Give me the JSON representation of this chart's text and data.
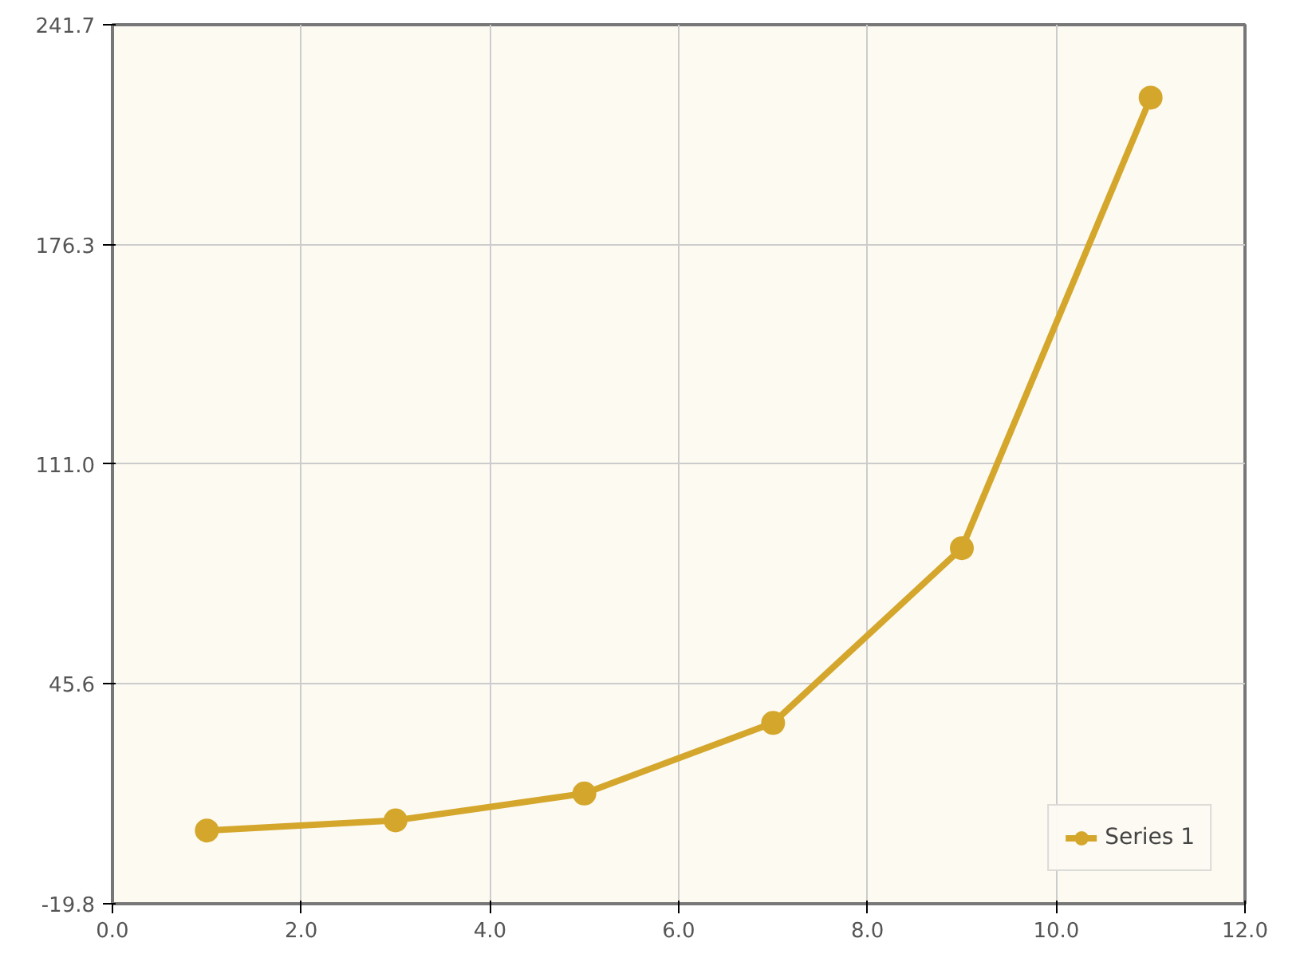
{
  "chart_data": {
    "type": "line",
    "x": [
      1,
      3,
      5,
      7,
      9,
      11
    ],
    "series": [
      {
        "name": "Series 1",
        "color": "#d4a72c",
        "values": [
          2,
          5,
          13,
          34,
          86,
          220
        ]
      }
    ],
    "xlim": [
      0,
      12
    ],
    "xticks": [
      {
        "value": 0,
        "label": "0.0"
      },
      {
        "value": 2,
        "label": "2.0"
      },
      {
        "value": 4,
        "label": "4.0"
      },
      {
        "value": 6,
        "label": "6.0"
      },
      {
        "value": 8,
        "label": "8.0"
      },
      {
        "value": 10,
        "label": "10.0"
      },
      {
        "value": 12,
        "label": "12.0"
      }
    ],
    "ylim": [
      -19.8,
      241.7
    ],
    "yticks": [
      -19.8,
      45.6,
      {
        "value": 111.0,
        "label": "111.0"
      },
      176.3,
      241.7
    ],
    "grid": true,
    "legend": "bottom right",
    "marker": "circle",
    "line_style": "solid"
  }
}
